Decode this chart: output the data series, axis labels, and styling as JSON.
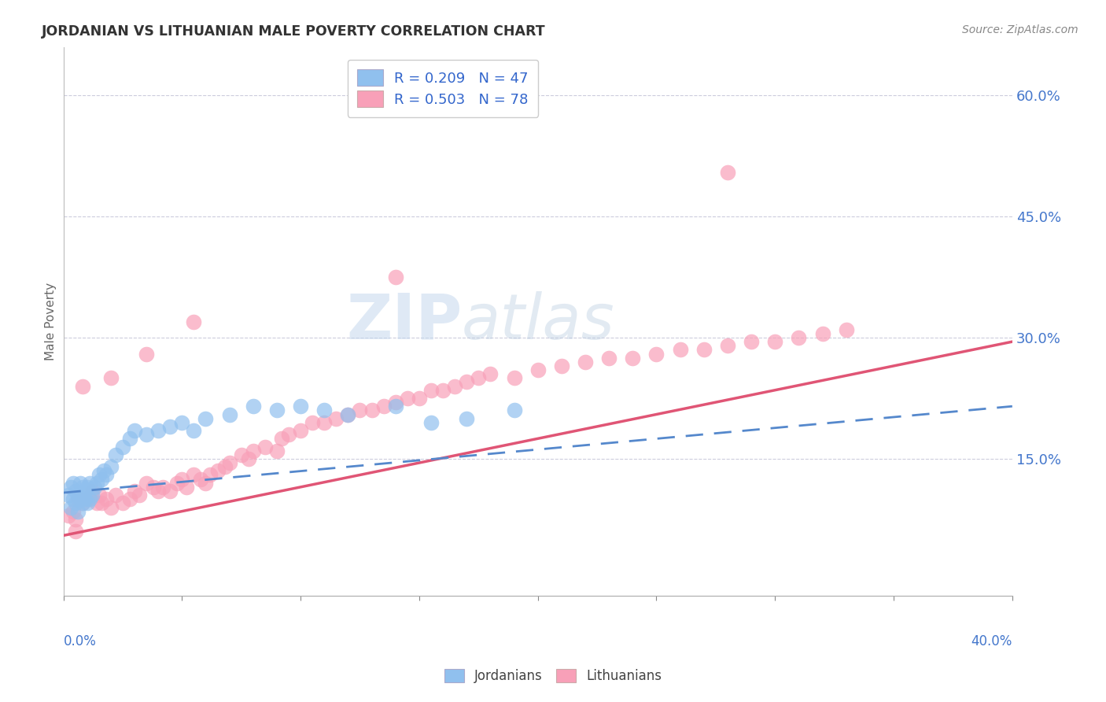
{
  "title": "JORDANIAN VS LITHUANIAN MALE POVERTY CORRELATION CHART",
  "source": "Source: ZipAtlas.com",
  "ylabel": "Male Poverty",
  "ytick_labels": [
    "60.0%",
    "45.0%",
    "30.0%",
    "15.0%"
  ],
  "ytick_values": [
    0.6,
    0.45,
    0.3,
    0.15
  ],
  "xlim": [
    0.0,
    0.4
  ],
  "ylim": [
    -0.02,
    0.66
  ],
  "legend_r1": "R = 0.209   N = 47",
  "legend_r2": "R = 0.503   N = 78",
  "jordanian_color": "#90c0ee",
  "lithuanian_color": "#f8a0b8",
  "jordanian_line_color": "#5588cc",
  "lithuanian_line_color": "#e05575",
  "watermark_zip": "ZIP",
  "watermark_atlas": "atlas",
  "jordanians_x": [
    0.002,
    0.003,
    0.003,
    0.004,
    0.004,
    0.005,
    0.005,
    0.006,
    0.006,
    0.007,
    0.007,
    0.008,
    0.008,
    0.009,
    0.009,
    0.01,
    0.01,
    0.011,
    0.011,
    0.012,
    0.013,
    0.014,
    0.015,
    0.016,
    0.017,
    0.018,
    0.02,
    0.022,
    0.025,
    0.028,
    0.03,
    0.035,
    0.04,
    0.045,
    0.05,
    0.055,
    0.06,
    0.07,
    0.08,
    0.09,
    0.1,
    0.11,
    0.12,
    0.14,
    0.155,
    0.17,
    0.19
  ],
  "jordanians_y": [
    0.105,
    0.09,
    0.115,
    0.1,
    0.12,
    0.095,
    0.11,
    0.085,
    0.105,
    0.1,
    0.12,
    0.095,
    0.115,
    0.1,
    0.11,
    0.095,
    0.115,
    0.1,
    0.12,
    0.105,
    0.115,
    0.12,
    0.13,
    0.125,
    0.135,
    0.13,
    0.14,
    0.155,
    0.165,
    0.175,
    0.185,
    0.18,
    0.185,
    0.19,
    0.195,
    0.185,
    0.2,
    0.205,
    0.215,
    0.21,
    0.215,
    0.21,
    0.205,
    0.215,
    0.195,
    0.2,
    0.21
  ],
  "lithuanians_x": [
    0.002,
    0.004,
    0.005,
    0.006,
    0.008,
    0.01,
    0.012,
    0.014,
    0.015,
    0.016,
    0.018,
    0.02,
    0.022,
    0.025,
    0.028,
    0.03,
    0.032,
    0.035,
    0.038,
    0.04,
    0.042,
    0.045,
    0.048,
    0.05,
    0.052,
    0.055,
    0.058,
    0.06,
    0.062,
    0.065,
    0.068,
    0.07,
    0.075,
    0.078,
    0.08,
    0.085,
    0.09,
    0.092,
    0.095,
    0.1,
    0.105,
    0.11,
    0.115,
    0.12,
    0.125,
    0.13,
    0.135,
    0.14,
    0.145,
    0.15,
    0.155,
    0.16,
    0.165,
    0.17,
    0.175,
    0.18,
    0.19,
    0.2,
    0.21,
    0.22,
    0.23,
    0.24,
    0.25,
    0.26,
    0.27,
    0.28,
    0.29,
    0.3,
    0.31,
    0.32,
    0.33,
    0.008,
    0.02,
    0.035,
    0.055,
    0.14,
    0.28,
    0.005
  ],
  "lithuanians_y": [
    0.08,
    0.085,
    0.075,
    0.1,
    0.095,
    0.1,
    0.11,
    0.095,
    0.105,
    0.095,
    0.1,
    0.09,
    0.105,
    0.095,
    0.1,
    0.11,
    0.105,
    0.12,
    0.115,
    0.11,
    0.115,
    0.11,
    0.12,
    0.125,
    0.115,
    0.13,
    0.125,
    0.12,
    0.13,
    0.135,
    0.14,
    0.145,
    0.155,
    0.15,
    0.16,
    0.165,
    0.16,
    0.175,
    0.18,
    0.185,
    0.195,
    0.195,
    0.2,
    0.205,
    0.21,
    0.21,
    0.215,
    0.22,
    0.225,
    0.225,
    0.235,
    0.235,
    0.24,
    0.245,
    0.25,
    0.255,
    0.25,
    0.26,
    0.265,
    0.27,
    0.275,
    0.275,
    0.28,
    0.285,
    0.285,
    0.29,
    0.295,
    0.295,
    0.3,
    0.305,
    0.31,
    0.24,
    0.25,
    0.28,
    0.32,
    0.375,
    0.505,
    0.06
  ],
  "jord_line_x": [
    0.0,
    0.4
  ],
  "jord_line_y": [
    0.108,
    0.215
  ],
  "lith_line_x": [
    0.0,
    0.4
  ],
  "lith_line_y": [
    0.055,
    0.295
  ]
}
